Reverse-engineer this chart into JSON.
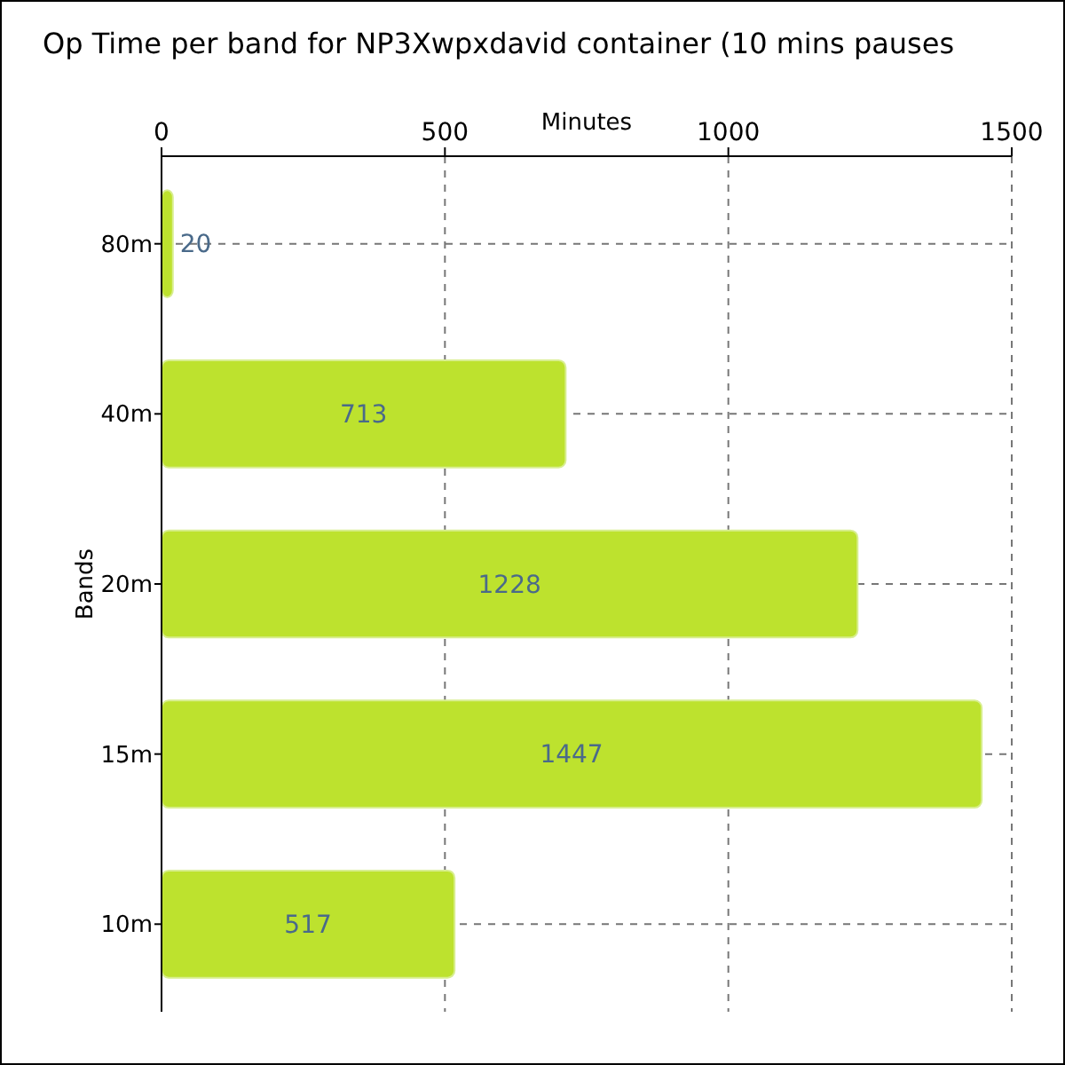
{
  "chart_data": {
    "type": "bar",
    "orientation": "horizontal",
    "title": "Op Time per band for NP3Xwpxdavid container (10 mins pauses",
    "xlabel": "Minutes",
    "ylabel": "Bands",
    "categories": [
      "80m",
      "40m",
      "20m",
      "15m",
      "10m"
    ],
    "values": [
      20,
      713,
      1228,
      1447,
      517
    ],
    "color": "#bde22e",
    "xlim": [
      0,
      1500
    ],
    "xticks": [
      0,
      500,
      1000,
      1500
    ],
    "grid": true,
    "data_labels": true
  }
}
